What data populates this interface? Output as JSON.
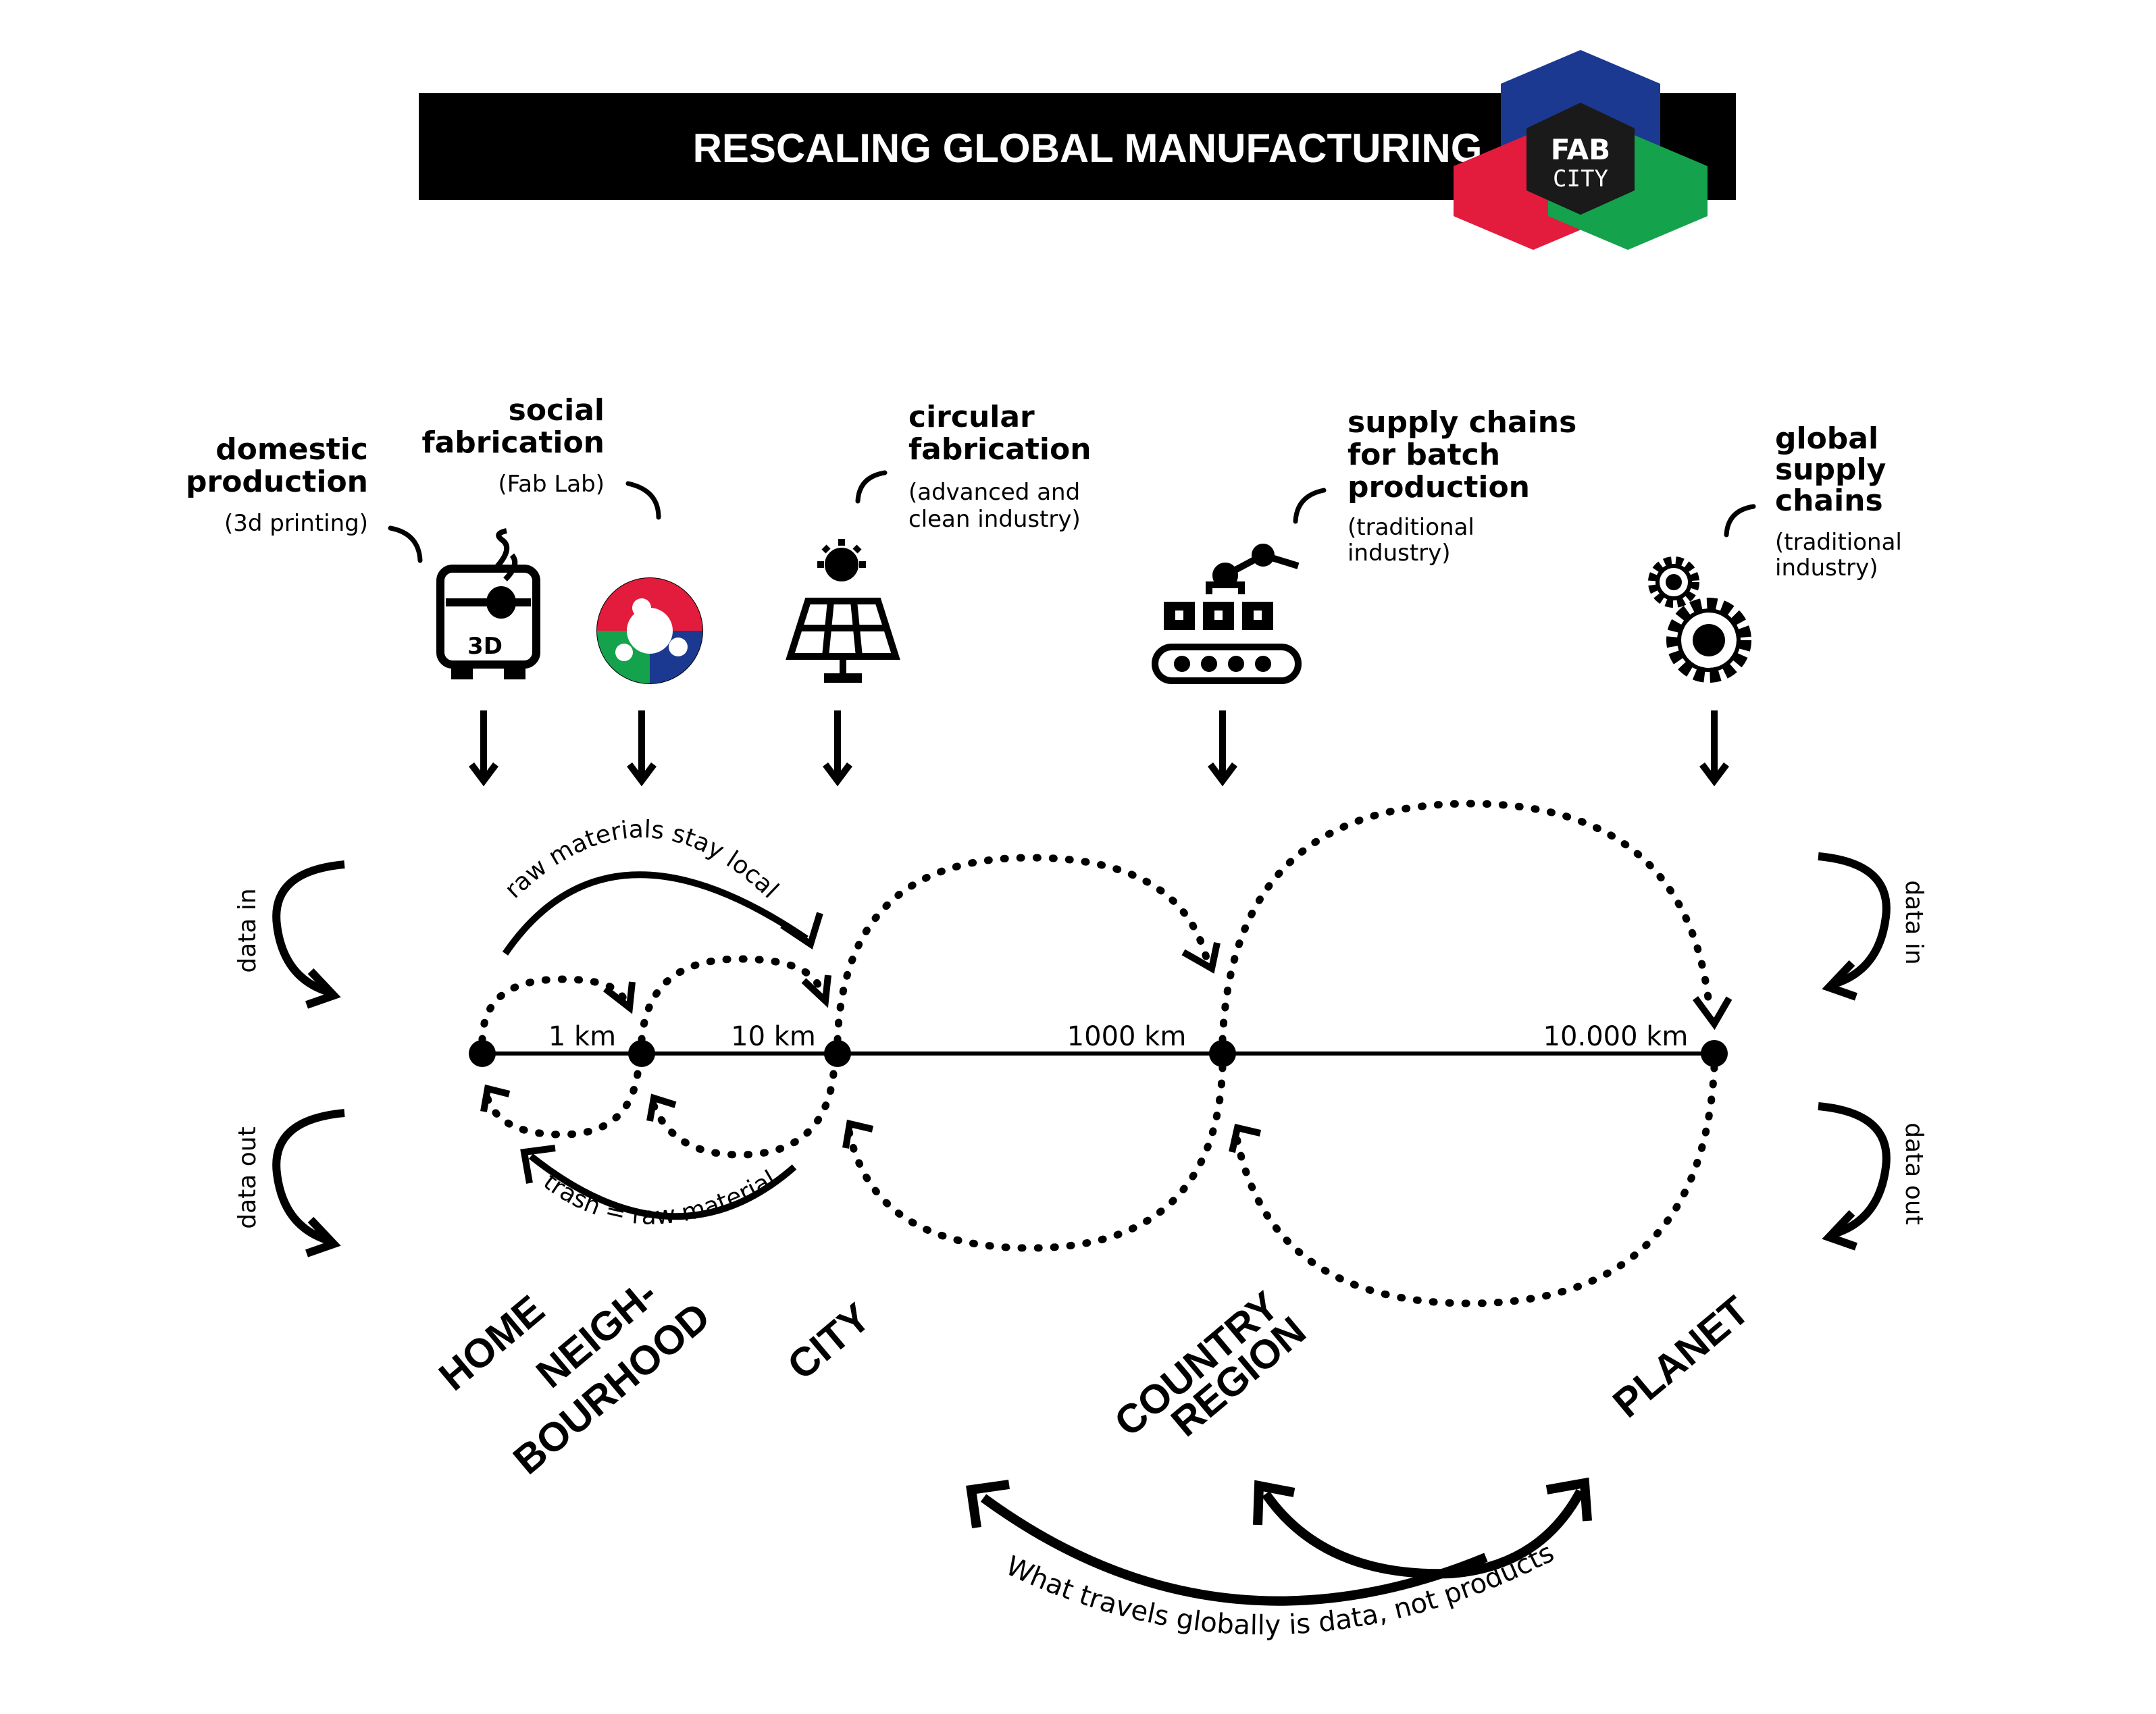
{
  "header": {
    "title": "RESCALING GLOBAL MANUFACTURING",
    "logo_line1": "FAB",
    "logo_line2": "CITY",
    "colors": {
      "blue": "#1b3990",
      "red": "#e31b3c",
      "green": "#15a24c",
      "dark": "#1a1a1a"
    }
  },
  "categories": {
    "domestic": {
      "line1": "domestic",
      "line2": "production",
      "sub": "(3d printing)"
    },
    "social": {
      "line1": "social",
      "line2": "fabrication",
      "sub": "(Fab Lab)"
    },
    "circular": {
      "line1": "circular",
      "line2": "fabrication",
      "sub1": "(advanced and",
      "sub2": "clean industry)"
    },
    "supply": {
      "line1": "supply chains",
      "line2": "for batch",
      "line3": "production",
      "sub1": "(traditional",
      "sub2": "industry)"
    },
    "global": {
      "line1": "global",
      "line2": "supply",
      "line3": "chains",
      "sub1": "(traditional",
      "sub2": "industry)"
    }
  },
  "icons": {
    "printer_label": "3D",
    "names": [
      "3d-printer-icon",
      "fab-lab-logo-icon",
      "solar-panel-icon",
      "factory-robot-icon",
      "gears-icon"
    ]
  },
  "distances": [
    "1 km",
    "10 km",
    "1000 km",
    "10.000 km"
  ],
  "scales": {
    "home": "HOME",
    "neigh1": "NEIGH-",
    "neigh2": "BOURHOOD",
    "city": "CITY",
    "country1": "COUNTRY",
    "country2": "REGION",
    "planet": "PLANET"
  },
  "annotations": {
    "data_in": "data in",
    "data_out": "data out",
    "raw_local": "raw materials stay local",
    "trash": "trash = raw material",
    "global_data": "What travels globally is data, not products"
  }
}
